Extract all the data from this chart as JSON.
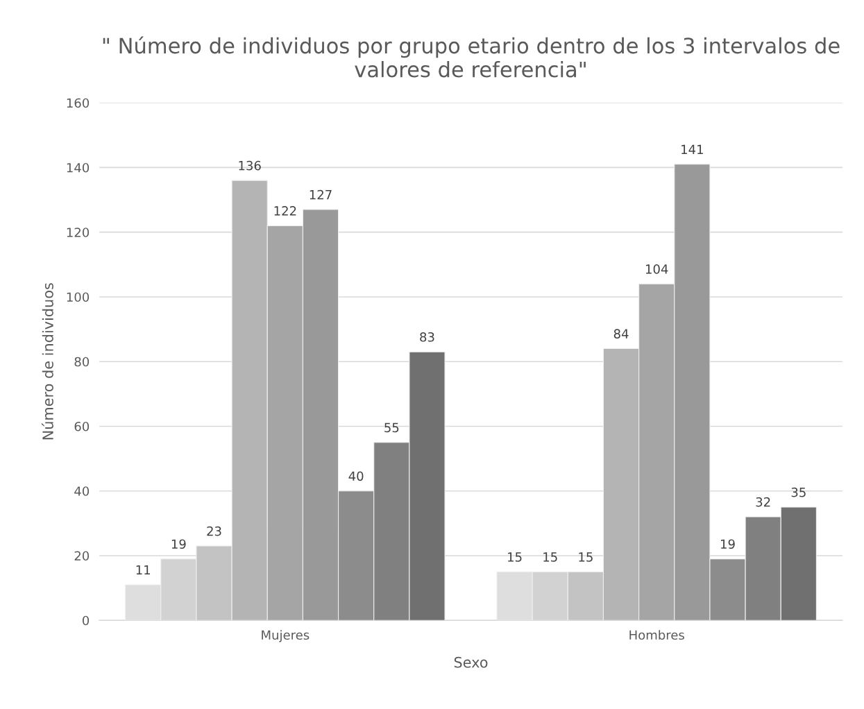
{
  "chart_data": {
    "type": "bar",
    "title": "\" Número de individuos por grupo etario dentro de los 3 intervalos de valores de referencia\"",
    "xlabel": "Sexo",
    "ylabel": "Número de individuos",
    "categories": [
      "Mujeres",
      "Hombres"
    ],
    "series": [
      {
        "color": "#dedede",
        "values": [
          11,
          15
        ]
      },
      {
        "color": "#d2d2d2",
        "values": [
          19,
          15
        ]
      },
      {
        "color": "#c3c3c3",
        "values": [
          23,
          15
        ]
      },
      {
        "color": "#b4b4b4",
        "values": [
          136,
          84
        ]
      },
      {
        "color": "#a5a5a5",
        "values": [
          122,
          104
        ]
      },
      {
        "color": "#999999",
        "values": [
          127,
          141
        ]
      },
      {
        "color": "#8c8c8c",
        "values": [
          40,
          19
        ]
      },
      {
        "color": "#808080",
        "values": [
          55,
          32
        ]
      },
      {
        "color": "#707070",
        "values": [
          83,
          35
        ]
      }
    ],
    "ylim": [
      0,
      160
    ],
    "yticks": [
      0,
      20,
      40,
      60,
      80,
      100,
      120,
      140,
      160
    ],
    "grid": "y",
    "data_labels": true
  }
}
